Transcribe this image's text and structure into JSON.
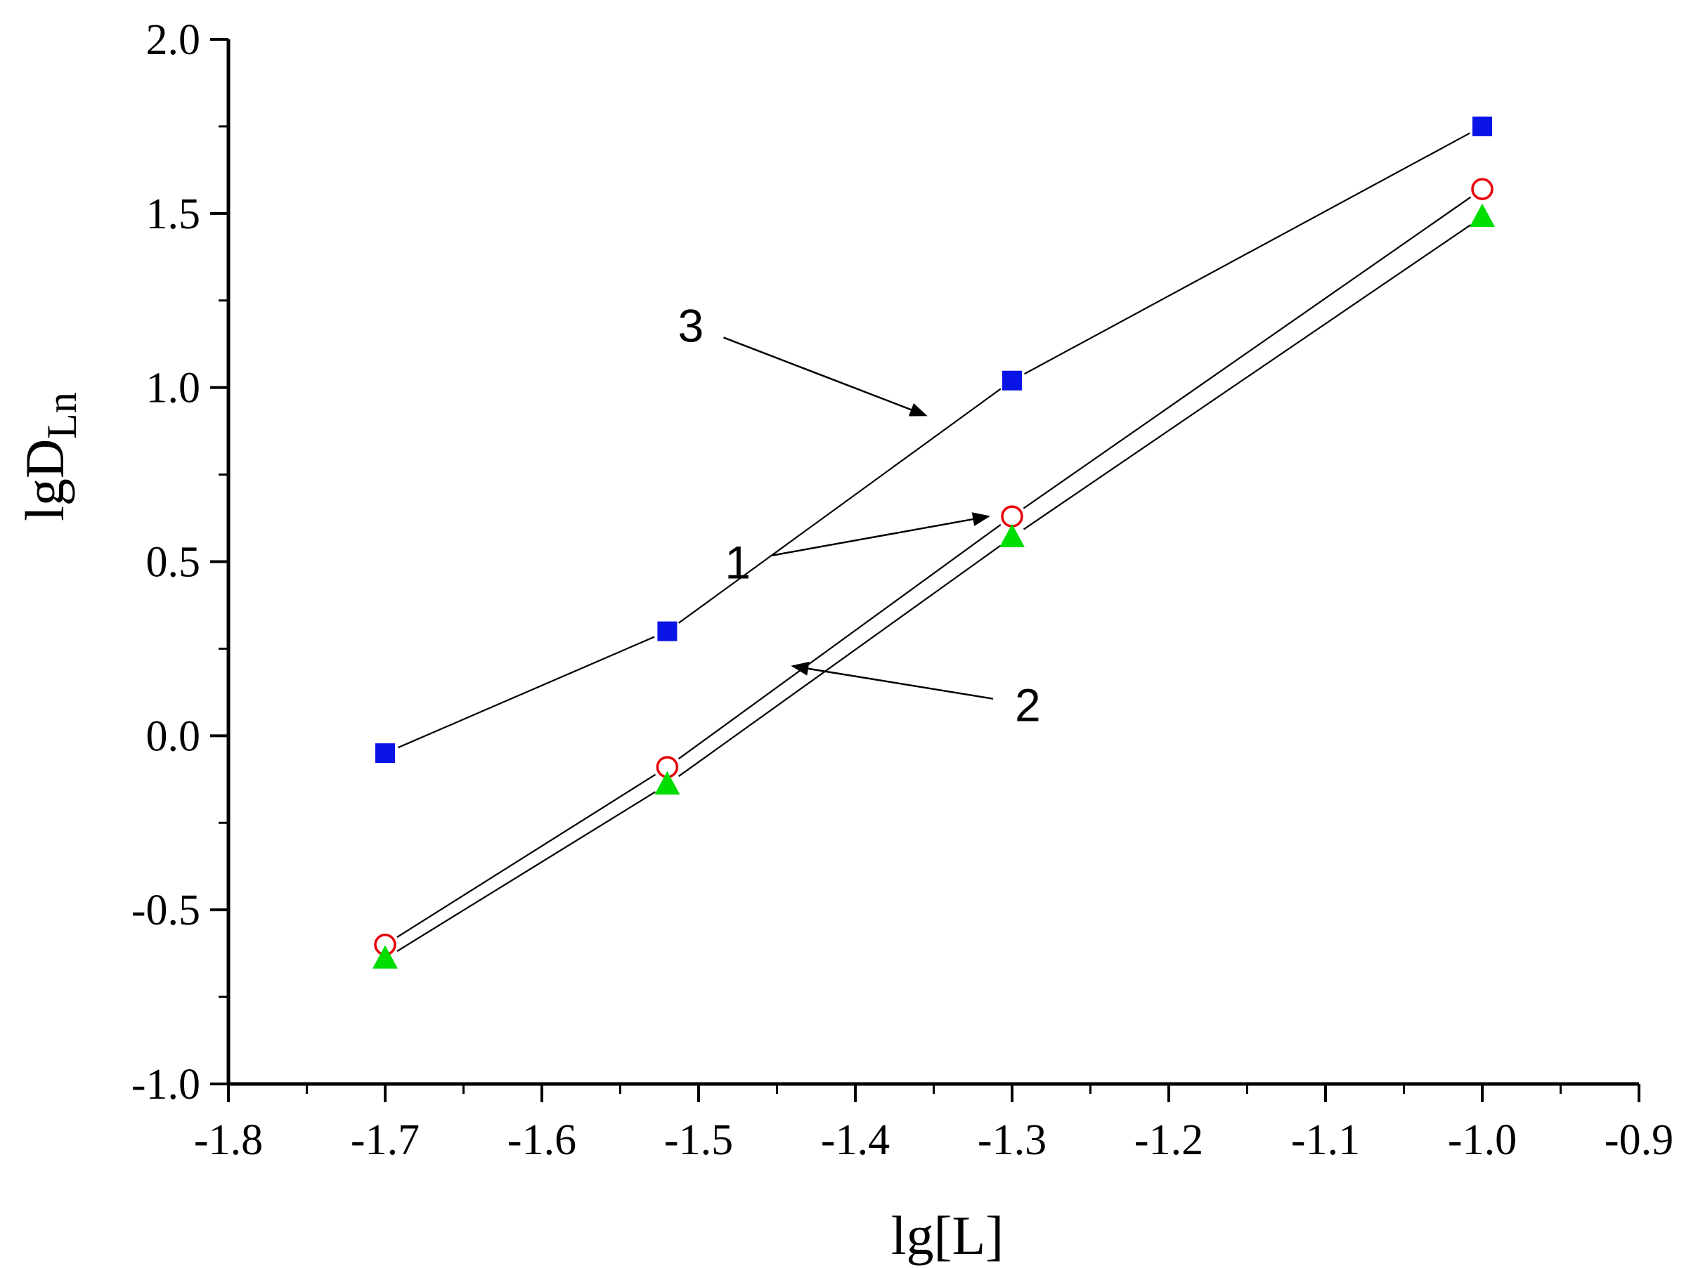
{
  "chart_data": {
    "type": "line",
    "xlabel": "lg[L]",
    "ylabel_main": "lgD",
    "ylabel_sub": "Ln",
    "xlim": [
      -1.8,
      -0.9
    ],
    "ylim": [
      -1.0,
      2.0
    ],
    "x_ticks": [
      "-1.8",
      "-1.7",
      "-1.6",
      "-1.5",
      "-1.4",
      "-1.3",
      "-1.2",
      "-1.1",
      "-1.0",
      "-0.9"
    ],
    "y_ticks": [
      "-1.0",
      "-0.5",
      "0.0",
      "0.5",
      "1.0",
      "1.5",
      "2.0"
    ],
    "x_minor_step": 0.05,
    "y_minor_step": 0.25,
    "grid": false,
    "series": [
      {
        "name": "1",
        "marker": "open-circle",
        "color": "#e8000b",
        "x": [
          -1.7,
          -1.52,
          -1.3,
          -1.0
        ],
        "y": [
          -0.6,
          -0.09,
          0.63,
          1.57
        ]
      },
      {
        "name": "2",
        "marker": "filled-triangle",
        "color": "#00dd00",
        "x": [
          -1.7,
          -1.52,
          -1.3,
          -1.0
        ],
        "y": [
          -0.64,
          -0.14,
          0.57,
          1.49
        ]
      },
      {
        "name": "3",
        "marker": "filled-square",
        "color": "#0a14e6",
        "x": [
          -1.7,
          -1.52,
          -1.3,
          -1.0
        ],
        "y": [
          -0.05,
          0.3,
          1.02,
          1.75
        ]
      }
    ],
    "annotations": [
      {
        "text": "1",
        "x": -1.475,
        "y": 0.5,
        "arrow_to": [
          -1.315,
          0.63
        ]
      },
      {
        "text": "2",
        "x": -1.29,
        "y": 0.09,
        "arrow_to": [
          -1.44,
          0.2
        ]
      },
      {
        "text": "3",
        "x": -1.505,
        "y": 1.18,
        "arrow_to": [
          -1.355,
          0.92
        ]
      }
    ]
  }
}
